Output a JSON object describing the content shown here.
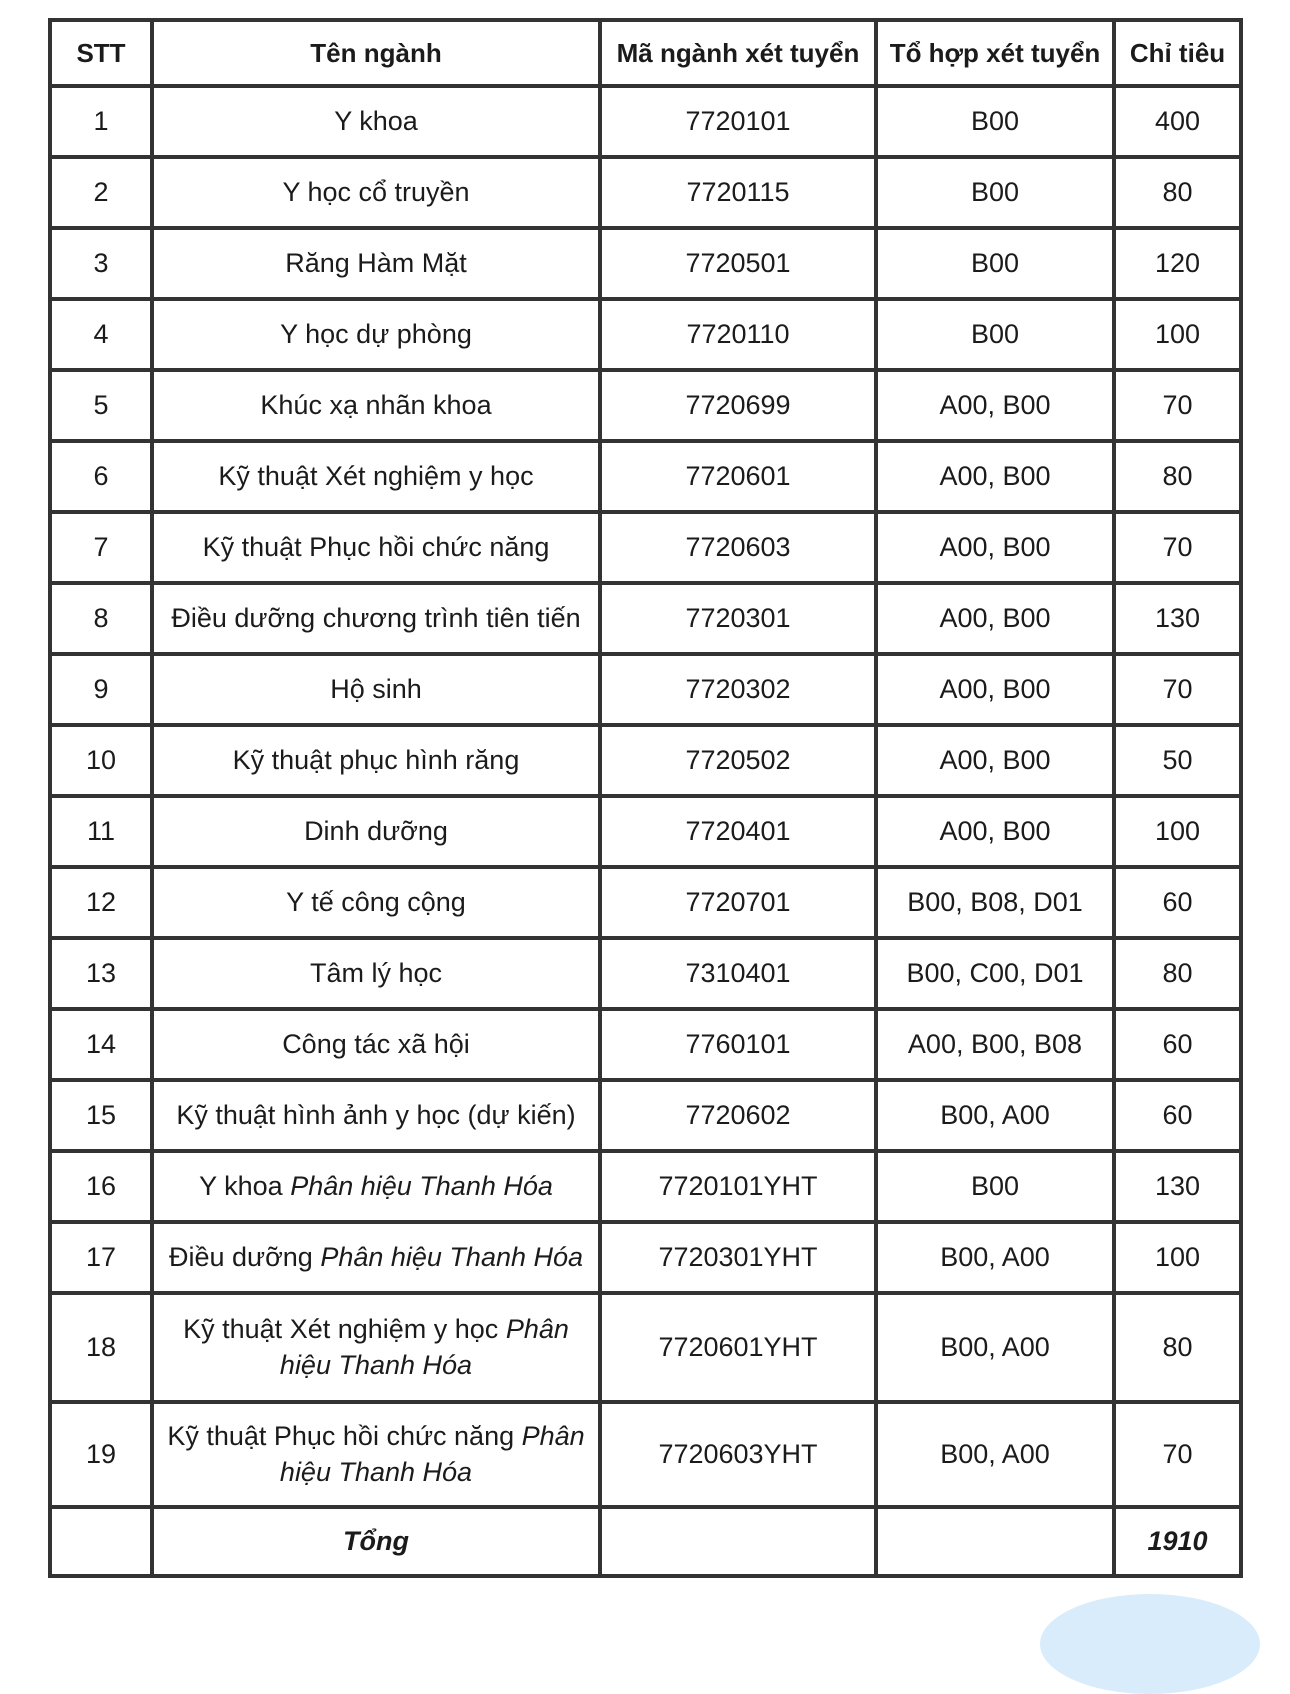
{
  "table": {
    "columns": [
      "STT",
      "Tên ngành",
      "Mã ngành xét tuyển",
      "Tổ hợp xét tuyển",
      "Chỉ tiêu"
    ],
    "rows": [
      {
        "stt": "1",
        "name": "Y khoa",
        "name_italic": "",
        "code": "7720101",
        "combo": "B00",
        "quota": "400"
      },
      {
        "stt": "2",
        "name": "Y học cổ truyền",
        "name_italic": "",
        "code": "7720115",
        "combo": "B00",
        "quota": "80"
      },
      {
        "stt": "3",
        "name": "Răng Hàm Mặt",
        "name_italic": "",
        "code": "7720501",
        "combo": "B00",
        "quota": "120"
      },
      {
        "stt": "4",
        "name": "Y học dự phòng",
        "name_italic": "",
        "code": "7720110",
        "combo": "B00",
        "quota": "100"
      },
      {
        "stt": "5",
        "name": "Khúc xạ nhãn khoa",
        "name_italic": "",
        "code": "7720699",
        "combo": "A00, B00",
        "quota": "70"
      },
      {
        "stt": "6",
        "name": "Kỹ thuật Xét nghiệm y học",
        "name_italic": "",
        "code": "7720601",
        "combo": "A00, B00",
        "quota": "80"
      },
      {
        "stt": "7",
        "name": "Kỹ thuật Phục hồi chức năng",
        "name_italic": "",
        "code": "7720603",
        "combo": "A00, B00",
        "quota": "70"
      },
      {
        "stt": "8",
        "name": "Điều dưỡng chương trình tiên tiến",
        "name_italic": "",
        "code": "7720301",
        "combo": "A00, B00",
        "quota": "130"
      },
      {
        "stt": "9",
        "name": "Hộ sinh",
        "name_italic": "",
        "code": "7720302",
        "combo": "A00, B00",
        "quota": "70"
      },
      {
        "stt": "10",
        "name": "Kỹ thuật phục hình răng",
        "name_italic": "",
        "code": "7720502",
        "combo": "A00, B00",
        "quota": "50"
      },
      {
        "stt": "11",
        "name": "Dinh dưỡng",
        "name_italic": "",
        "code": "7720401",
        "combo": "A00, B00",
        "quota": "100"
      },
      {
        "stt": "12",
        "name": "Y tế công cộng",
        "name_italic": "",
        "code": "7720701",
        "combo": "B00, B08, D01",
        "quota": "60"
      },
      {
        "stt": "13",
        "name": "Tâm lý học",
        "name_italic": "",
        "code": "7310401",
        "combo": "B00, C00, D01",
        "quota": "80"
      },
      {
        "stt": "14",
        "name": "Công tác xã hội",
        "name_italic": "",
        "code": "7760101",
        "combo": "A00, B00, B08",
        "quota": "60"
      },
      {
        "stt": "15",
        "name": "Kỹ thuật hình ảnh y học (dự kiến)",
        "name_italic": "",
        "code": "7720602",
        "combo": "B00, A00",
        "quota": "60"
      },
      {
        "stt": "16",
        "name": "Y khoa ",
        "name_italic": "Phân hiệu Thanh Hóa",
        "code": "7720101YHT",
        "combo": "B00",
        "quota": "130"
      },
      {
        "stt": "17",
        "name": "Điều dưỡng ",
        "name_italic": "Phân hiệu Thanh Hóa",
        "code": "7720301YHT",
        "combo": "B00, A00",
        "quota": "100"
      },
      {
        "stt": "18",
        "name": "Kỹ thuật Xét nghiệm y học ",
        "name_italic": "Phân hiệu Thanh Hóa",
        "code": "7720601YHT",
        "combo": "B00, A00",
        "quota": "80"
      },
      {
        "stt": "19",
        "name": "Kỹ thuật Phục hồi chức năng ",
        "name_italic": "Phân hiệu Thanh Hóa",
        "code": "7720603YHT",
        "combo": "B00, A00",
        "quota": "70"
      }
    ],
    "total": {
      "label": "Tổng",
      "value": "1910"
    }
  },
  "colors": {
    "border": "#333333",
    "text": "#1b1b1b",
    "watermark": "#d9ecfb"
  }
}
